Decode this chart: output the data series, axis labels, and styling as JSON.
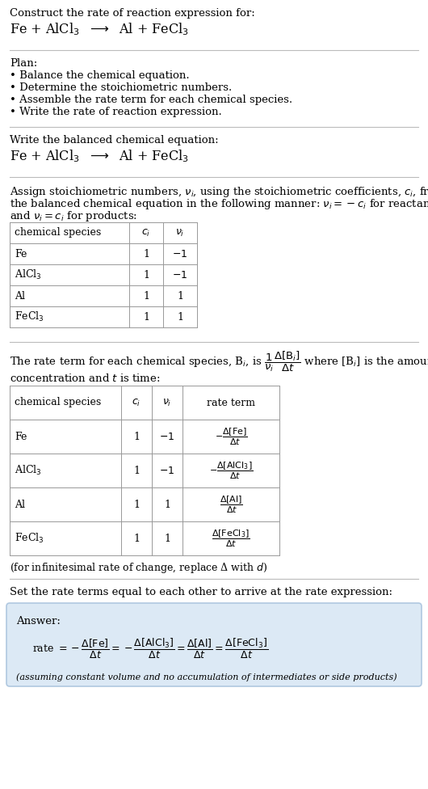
{
  "bg_color": "#ffffff",
  "text_color": "#000000",
  "title_line1": "Construct the rate of reaction expression for:",
  "equation_header": "Fe + AlCl$_3$  $\\longrightarrow$  Al + FeCl$_3$",
  "plan_header": "Plan:",
  "plan_items": [
    "• Balance the chemical equation.",
    "• Determine the stoichiometric numbers.",
    "• Assemble the rate term for each chemical species.",
    "• Write the rate of reaction expression."
  ],
  "section2_header": "Write the balanced chemical equation:",
  "section2_eq": "Fe + AlCl$_3$  $\\longrightarrow$  Al + FeCl$_3$",
  "section3_text1": "Assign stoichiometric numbers, $\\nu_i$, using the stoichiometric coefficients, $c_i$, from",
  "section3_text2": "the balanced chemical equation in the following manner: $\\nu_i = -c_i$ for reactants",
  "section3_text3": "and $\\nu_i = c_i$ for products:",
  "table1_headers": [
    "chemical species",
    "$c_i$",
    "$\\nu_i$"
  ],
  "table1_rows": [
    [
      "Fe",
      "1",
      "$-1$"
    ],
    [
      "AlCl$_3$",
      "1",
      "$-1$"
    ],
    [
      "Al",
      "1",
      "1"
    ],
    [
      "FeCl$_3$",
      "1",
      "1"
    ]
  ],
  "section4_text": "The rate term for each chemical species, B$_i$, is $\\dfrac{1}{\\nu_i}\\dfrac{\\Delta[\\mathrm{B}_i]}{\\Delta t}$ where [B$_i$] is the amount",
  "section4_text2": "concentration and $t$ is time:",
  "table2_headers": [
    "chemical species",
    "$c_i$",
    "$\\nu_i$",
    "rate term"
  ],
  "table2_rows": [
    [
      "Fe",
      "1",
      "$-1$",
      "$-\\dfrac{\\Delta[\\mathrm{Fe}]}{\\Delta t}$"
    ],
    [
      "AlCl$_3$",
      "1",
      "$-1$",
      "$-\\dfrac{\\Delta[\\mathrm{AlCl_3}]}{\\Delta t}$"
    ],
    [
      "Al",
      "1",
      "1",
      "$\\dfrac{\\Delta[\\mathrm{Al}]}{\\Delta t}$"
    ],
    [
      "FeCl$_3$",
      "1",
      "1",
      "$\\dfrac{\\Delta[\\mathrm{FeCl_3}]}{\\Delta t}$"
    ]
  ],
  "infinitesimal_note": "(for infinitesimal rate of change, replace Δ with $d$)",
  "section5_text": "Set the rate terms equal to each other to arrive at the rate expression:",
  "answer_bg": "#dce9f5",
  "answer_border": "#b0c8e0",
  "answer_label": "Answer:",
  "answer_eq": "rate $= -\\dfrac{\\Delta[\\mathrm{Fe}]}{\\Delta t} = -\\dfrac{\\Delta[\\mathrm{AlCl_3}]}{\\Delta t} = \\dfrac{\\Delta[\\mathrm{Al}]}{\\Delta t} = \\dfrac{\\Delta[\\mathrm{FeCl_3}]}{\\Delta t}$",
  "answer_note": "(assuming constant volume and no accumulation of intermediates or side products)",
  "divider_color": "#bbbbbb",
  "table_border_color": "#999999",
  "font_size_body": 9.5,
  "font_size_table": 9.0,
  "font_size_eq": 11.5
}
